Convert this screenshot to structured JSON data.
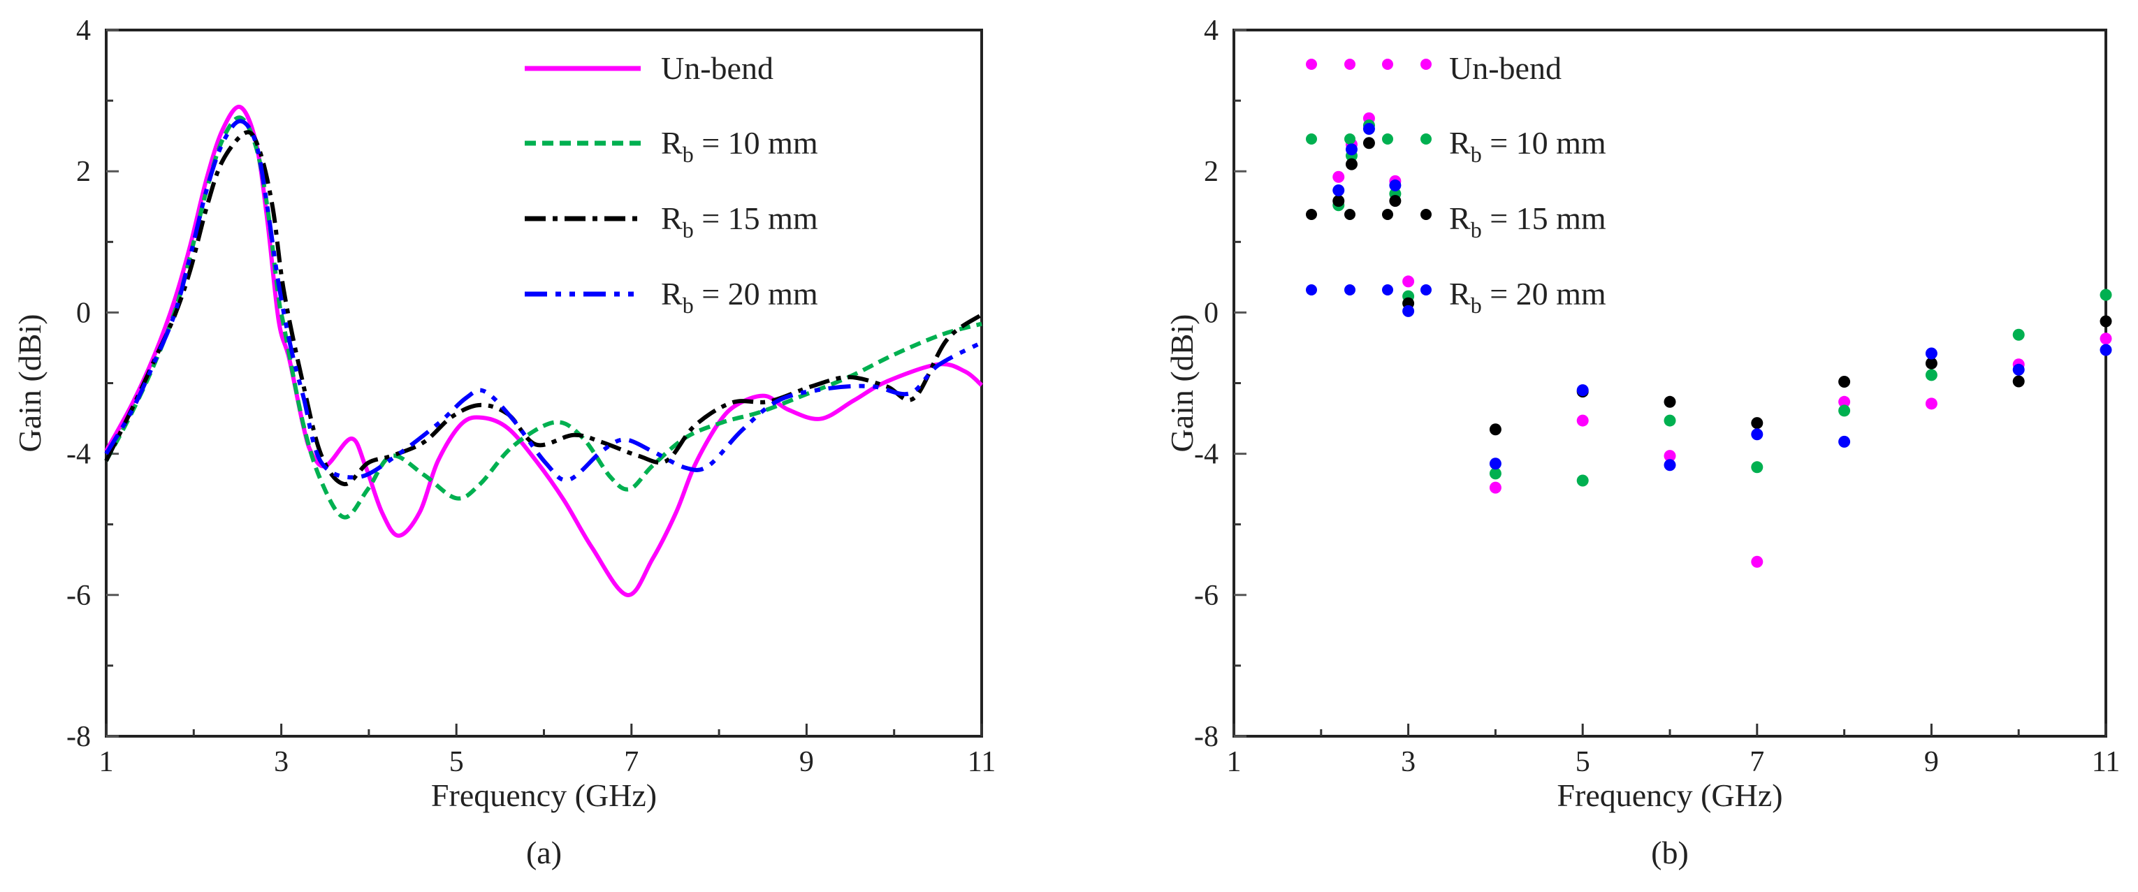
{
  "chart_data": [
    {
      "type": "line",
      "panel_label": "(a)",
      "xlabel": "Frequency (GHz)",
      "ylabel": "Gain (dBi)",
      "xlim": [
        1,
        11
      ],
      "x_ticks": [
        "1",
        "3",
        "5",
        "7",
        "9",
        "11"
      ],
      "y_ticks": [
        "4",
        "2",
        "0",
        "-4",
        "-6",
        "-8"
      ],
      "grid": false,
      "legend_position": "top-right",
      "series": [
        {
          "name_main": "Un-bend",
          "name_sub": "",
          "name_rest": "",
          "color": "#ff00ff",
          "style": "solid",
          "x": [
            1,
            1.3,
            1.56,
            1.78,
            1.96,
            2.15,
            2.33,
            2.53,
            2.71,
            2.84,
            2.97,
            3.09,
            3.25,
            3.35,
            3.51,
            3.8,
            3.96,
            4.15,
            4.34,
            4.58,
            4.79,
            5.06,
            5.3,
            5.59,
            5.91,
            6.23,
            6.55,
            6.95,
            7.24,
            7.51,
            7.72,
            7.99,
            8.2,
            8.52,
            8.79,
            9.16,
            9.54,
            9.91,
            10.5,
            10.81,
            11
          ],
          "y": [
            -3.92,
            -2.57,
            -1.15,
            0.17,
            0.95,
            1.91,
            2.59,
            2.91,
            2.41,
            1.31,
            -0.23,
            -1.3,
            -3.2,
            -4.0,
            -4.17,
            -3.57,
            -4.17,
            -4.83,
            -5.16,
            -4.83,
            -4.1,
            -3.15,
            -2.98,
            -3.28,
            -4.1,
            -4.66,
            -5.33,
            -6.0,
            -5.49,
            -4.83,
            -4.17,
            -3.15,
            -2.62,
            -2.36,
            -2.75,
            -3.01,
            -2.49,
            -1.96,
            -1.47,
            -1.67,
            -2.06
          ]
        },
        {
          "name_main": "R",
          "name_sub": "b",
          "name_rest": " = 10 mm",
          "color": "#00b050",
          "style": "dash",
          "x": [
            1,
            1.3,
            1.56,
            1.78,
            1.96,
            2.15,
            2.33,
            2.53,
            2.71,
            2.84,
            2.97,
            3.03,
            3.25,
            3.46,
            3.72,
            3.99,
            4.26,
            4.63,
            5.0,
            5.27,
            5.64,
            6.12,
            6.44,
            6.76,
            6.98,
            7.24,
            7.62,
            8.04,
            8.47,
            8.95,
            9.48,
            10.01,
            10.55,
            11
          ],
          "y": [
            -4.1,
            -2.8,
            -1.4,
            0.0,
            0.8,
            1.75,
            2.45,
            2.76,
            2.35,
            1.5,
            0.2,
            -0.39,
            -3.15,
            -4.4,
            -4.9,
            -4.5,
            -4.03,
            -4.3,
            -4.63,
            -4.43,
            -3.8,
            -3.11,
            -3.54,
            -4.33,
            -4.5,
            -4.17,
            -3.54,
            -3.11,
            -2.82,
            -2.36,
            -1.83,
            -1.18,
            -0.62,
            -0.32
          ]
        },
        {
          "name_main": "R",
          "name_sub": "b",
          "name_rest": " = 15 mm",
          "color": "#000000",
          "style": "dashdot",
          "x": [
            1,
            1.3,
            1.56,
            1.78,
            1.96,
            2.15,
            2.33,
            2.6,
            2.75,
            2.9,
            3.03,
            3.25,
            3.46,
            3.72,
            3.99,
            4.26,
            4.63,
            4.95,
            5.27,
            5.59,
            5.91,
            6.34,
            6.66,
            7.08,
            7.4,
            7.72,
            8.15,
            8.57,
            9.06,
            9.48,
            9.91,
            10.23,
            10.6,
            11
          ],
          "y": [
            -4.1,
            -2.7,
            -1.3,
            -0.1,
            0.6,
            1.5,
            2.15,
            2.55,
            2.3,
            1.5,
            0.3,
            -2.03,
            -4.03,
            -4.43,
            -4.13,
            -4.03,
            -3.67,
            -2.95,
            -2.62,
            -2.88,
            -3.74,
            -3.47,
            -3.67,
            -4.03,
            -4.1,
            -3.21,
            -2.55,
            -2.52,
            -2.09,
            -1.83,
            -2.09,
            -2.42,
            -0.78,
            -0.06
          ]
        },
        {
          "name_main": "R",
          "name_sub": "b",
          "name_rest": " = 20 mm",
          "color": "#0000ff",
          "style": "dashdotdot",
          "x": [
            1,
            1.3,
            1.56,
            1.78,
            1.96,
            2.15,
            2.33,
            2.53,
            2.71,
            2.84,
            2.97,
            3.11,
            3.25,
            3.46,
            3.88,
            4.31,
            4.79,
            5.11,
            5.32,
            5.64,
            6.02,
            6.28,
            6.66,
            6.92,
            7.24,
            7.62,
            7.88,
            8.26,
            8.68,
            9.22,
            9.74,
            10.18,
            10.5,
            11
          ],
          "y": [
            -4.0,
            -2.75,
            -1.35,
            -0.05,
            0.8,
            1.75,
            2.4,
            2.71,
            2.4,
            1.5,
            0.4,
            -1.0,
            -2.36,
            -4.13,
            -4.33,
            -4.03,
            -3.15,
            -2.42,
            -2.23,
            -3.01,
            -4.13,
            -4.37,
            -3.93,
            -3.6,
            -3.93,
            -4.2,
            -4.17,
            -3.34,
            -2.49,
            -2.16,
            -2.09,
            -2.29,
            -1.5,
            -0.85
          ]
        }
      ]
    },
    {
      "type": "scatter",
      "panel_label": "(b)",
      "xlabel": "Frequency (GHz)",
      "ylabel": "Gain (dBi)",
      "xlim": [
        1,
        11
      ],
      "x_ticks": [
        "1",
        "3",
        "5",
        "7",
        "9",
        "11"
      ],
      "y_ticks": [
        "4",
        "2",
        "0",
        "-4",
        "-6",
        "-8"
      ],
      "grid": false,
      "legend_position": "top-right",
      "x": [
        2.2,
        2.35,
        2.55,
        2.85,
        3,
        4,
        5,
        6,
        7,
        8,
        9,
        10,
        11
      ],
      "series": [
        {
          "name_main": "Un-bend",
          "name_sub": "",
          "name_rest": "",
          "color": "#ff00ff",
          "values": [
            1.92,
            2.38,
            2.75,
            1.86,
            0.44,
            -4.48,
            -3.06,
            -4.03,
            -5.53,
            -2.53,
            -2.58,
            -1.47,
            -0.74
          ]
        },
        {
          "name_main": "R",
          "name_sub": "b",
          "name_rest": " = 10 mm",
          "color": "#00b050",
          "values": [
            1.52,
            2.22,
            2.65,
            1.68,
            0.23,
            -4.28,
            -4.38,
            -3.06,
            -4.19,
            -2.78,
            -1.77,
            -0.63,
            0.25
          ]
        },
        {
          "name_main": "R",
          "name_sub": "b",
          "name_rest": " = 15 mm",
          "color": "#000000",
          "values": [
            1.58,
            2.1,
            2.4,
            1.58,
            0.13,
            -3.31,
            -2.24,
            -2.53,
            -3.13,
            -1.96,
            -1.44,
            -1.95,
            -0.25
          ]
        },
        {
          "name_main": "R",
          "name_sub": "b",
          "name_rest": " = 20 mm",
          "color": "#0000ff",
          "values": [
            1.73,
            2.31,
            2.6,
            1.8,
            0.02,
            -4.14,
            -2.2,
            -4.16,
            -3.45,
            -3.66,
            -1.16,
            -1.62,
            -1.06
          ]
        }
      ]
    }
  ]
}
